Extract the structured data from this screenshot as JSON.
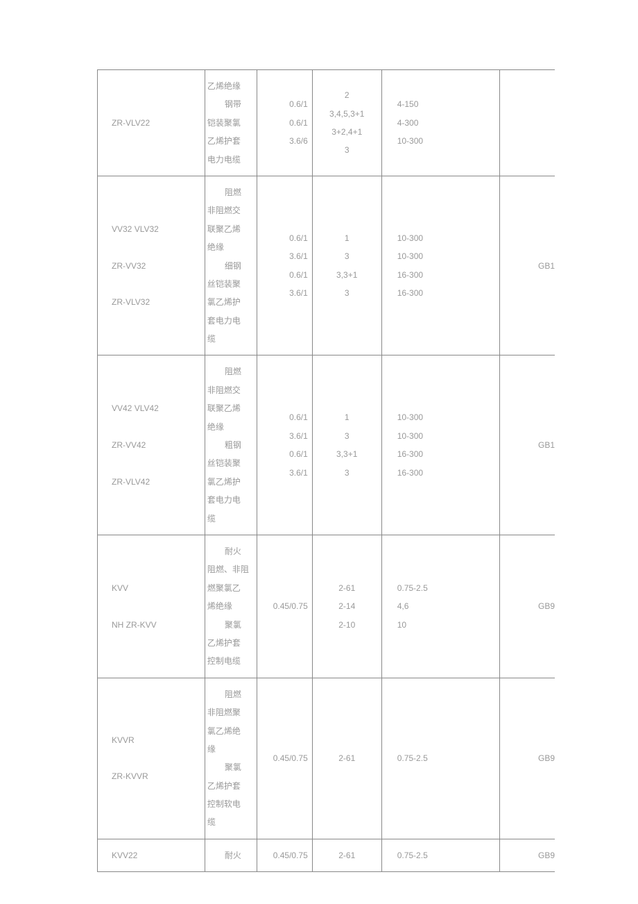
{
  "table": {
    "rows": [
      {
        "col1": [
          "ZR-VLV22"
        ],
        "col2_lines": [
          "乙烯绝缘",
          {
            "indent": true,
            "text": "钢带"
          },
          "铠装聚氯",
          "乙烯护套",
          "电力电缆"
        ],
        "col3": [
          "0.6/1",
          "0.6/1",
          "3.6/6"
        ],
        "col4": [
          "2",
          "3,4,5,3+1",
          "3+2,4+1",
          "3"
        ],
        "col5": [
          "4-150",
          "4-300",
          "10-300"
        ],
        "col6": ""
      },
      {
        "col1": [
          "VV32 VLV32",
          "ZR-VV32",
          "ZR-VLV32"
        ],
        "col2_lines": [
          {
            "indent": true,
            "text": "阻燃"
          },
          "非阻燃交",
          "联聚乙烯",
          "绝缘",
          {
            "indent": true,
            "text": "细钢"
          },
          "丝铠装聚",
          "氯乙烯护",
          "套电力电",
          "缆"
        ],
        "col3": [
          "0.6/1",
          "3.6/1",
          "0.6/1",
          "3.6/1"
        ],
        "col4": [
          "1",
          "3",
          "3,3+1",
          "3"
        ],
        "col5": [
          "10-300",
          "10-300",
          "16-300",
          "16-300"
        ],
        "col6": "GB1"
      },
      {
        "col1": [
          "VV42 VLV42",
          "ZR-VV42",
          "ZR-VLV42"
        ],
        "col2_lines": [
          {
            "indent": true,
            "text": "阻燃"
          },
          "非阻燃交",
          "联聚乙烯",
          "绝缘",
          {
            "indent": true,
            "text": "粗钢"
          },
          "丝铠装聚",
          "氯乙烯护",
          "套电力电",
          "缆"
        ],
        "col3": [
          "0.6/1",
          "3.6/1",
          "0.6/1",
          "3.6/1"
        ],
        "col4": [
          "1",
          "3",
          "3,3+1",
          "3"
        ],
        "col5": [
          "10-300",
          "10-300",
          "16-300",
          "16-300"
        ],
        "col6": "GB1"
      },
      {
        "col1": [
          "KVV",
          "NH ZR-KVV"
        ],
        "col2_lines": [
          {
            "indent": true,
            "text": "耐火"
          },
          "阻燃、非阻",
          "燃聚氯乙",
          "烯绝缘",
          {
            "indent": true,
            "text": "聚氯"
          },
          "乙烯护套",
          "控制电缆"
        ],
        "col3": [
          "0.45/0.75"
        ],
        "col4": [
          "2-61",
          "2-14",
          "2-10"
        ],
        "col5": [
          "0.75-2.5",
          "4,6",
          "10"
        ],
        "col6": "GB9"
      },
      {
        "col1": [
          "KVVR",
          "ZR-KVVR"
        ],
        "col2_lines": [
          {
            "indent": true,
            "text": "阻燃"
          },
          "非阻燃聚",
          "氯乙烯绝",
          "缘",
          {
            "indent": true,
            "text": "聚氯"
          },
          "乙烯护套",
          "控制软电",
          "缆"
        ],
        "col3": [
          "0.45/0.75"
        ],
        "col4": [
          "2-61"
        ],
        "col5": [
          "0.75-2.5"
        ],
        "col6": "GB9"
      },
      {
        "col1": [
          "KVV22"
        ],
        "col2_lines": [
          {
            "indent": true,
            "text": "耐火"
          }
        ],
        "col3": [
          "0.45/0.75"
        ],
        "col4": [
          "2-61"
        ],
        "col5": [
          "0.75-2.5"
        ],
        "col6": "GB9"
      }
    ]
  }
}
